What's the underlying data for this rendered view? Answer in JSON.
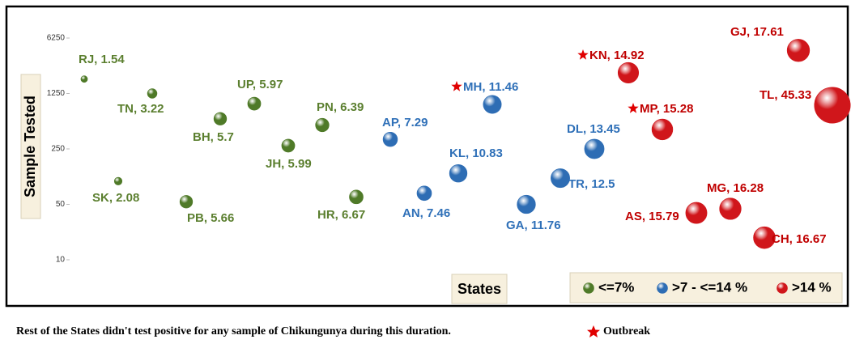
{
  "chart_data": {
    "type": "bubble",
    "y_label": "Sample Tested",
    "x_label": "States",
    "categories": [
      "RJ",
      "SK",
      "TN",
      "PB",
      "BH",
      "UP",
      "JH",
      "PN",
      "HR",
      "AP",
      "AN",
      "KL",
      "MH",
      "GA",
      "TR",
      "DL",
      "KN",
      "MP",
      "AS",
      "MG",
      "CH",
      "GJ",
      "TL"
    ],
    "ylim": [
      8,
      8000
    ],
    "yticks": [
      10,
      50,
      250,
      1250,
      6250
    ],
    "yscale": "log",
    "grid": false,
    "legend": "bottom-right",
    "series": [
      {
        "name": "<=7%",
        "color": "#4f7a28",
        "label_color": "#5b7f2f",
        "values": [
          1900,
          98,
          1250,
          54,
          600,
          930,
          275,
          500,
          62,
          null,
          null,
          null,
          null,
          null,
          null,
          null,
          null,
          null,
          null,
          null,
          null,
          null,
          null
        ],
        "sizes": [
          1.54,
          2.08,
          3.22,
          5.66,
          5.7,
          5.97,
          5.99,
          6.39,
          6.67,
          null,
          null,
          null,
          null,
          null,
          null,
          null,
          null,
          null,
          null,
          null,
          null,
          null,
          null
        ],
        "value_labels": [
          "RJ, 1.54",
          "SK, 2.08",
          "TN, 3.22",
          "PB, 5.66",
          "BH, 5.7",
          "UP, 5.97",
          "JH, 5.99",
          "PN, 6.39",
          "HR, 6.67",
          null,
          null,
          null,
          null,
          null,
          null,
          null,
          null,
          null,
          null,
          null,
          null,
          null,
          null
        ]
      },
      {
        "name": ">7 - <=14 %",
        "color": "#2e6db4",
        "label_color": "#2f70b8",
        "values": [
          null,
          null,
          null,
          null,
          null,
          null,
          null,
          null,
          null,
          330,
          69,
          123,
          910,
          50,
          107,
          250,
          null,
          null,
          null,
          null,
          null,
          null,
          null
        ],
        "sizes": [
          null,
          null,
          null,
          null,
          null,
          null,
          null,
          null,
          null,
          7.29,
          7.46,
          10.83,
          11.46,
          11.76,
          12.5,
          13.45,
          null,
          null,
          null,
          null,
          null,
          null,
          null
        ],
        "value_labels": [
          null,
          null,
          null,
          null,
          null,
          null,
          null,
          null,
          null,
          "AP, 7.29",
          "AN, 7.46",
          "KL, 10.83",
          "MH, 11.46",
          "GA, 11.76",
          "TR, 12.5",
          "DL, 13.45",
          null,
          null,
          null,
          null,
          null,
          null,
          null
        ]
      },
      {
        "name": ">14 %",
        "color": "#d0161b",
        "label_color": "#c00000",
        "values": [
          null,
          null,
          null,
          null,
          null,
          null,
          null,
          null,
          null,
          null,
          null,
          null,
          null,
          null,
          null,
          null,
          2280,
          440,
          39,
          44,
          19,
          4370,
          890
        ],
        "sizes": [
          null,
          null,
          null,
          null,
          null,
          null,
          null,
          null,
          null,
          null,
          null,
          null,
          null,
          null,
          null,
          null,
          14.92,
          15.28,
          15.79,
          16.28,
          16.67,
          17.61,
          45.33
        ],
        "value_labels": [
          null,
          null,
          null,
          null,
          null,
          null,
          null,
          null,
          null,
          null,
          null,
          null,
          null,
          null,
          null,
          null,
          "KN, 14.92",
          "MP, 15.28",
          "AS, 15.79",
          "MG, 16.28",
          "CH, 16.67",
          "GJ, 17.61",
          "TL, 45.33"
        ]
      }
    ],
    "outbreak_categories": [
      "MH",
      "KN",
      "MP"
    ],
    "outbreak_label": "Outbreak",
    "footnote": "Rest of the States didn't test positive for any sample of Chikungunya  during this duration."
  }
}
